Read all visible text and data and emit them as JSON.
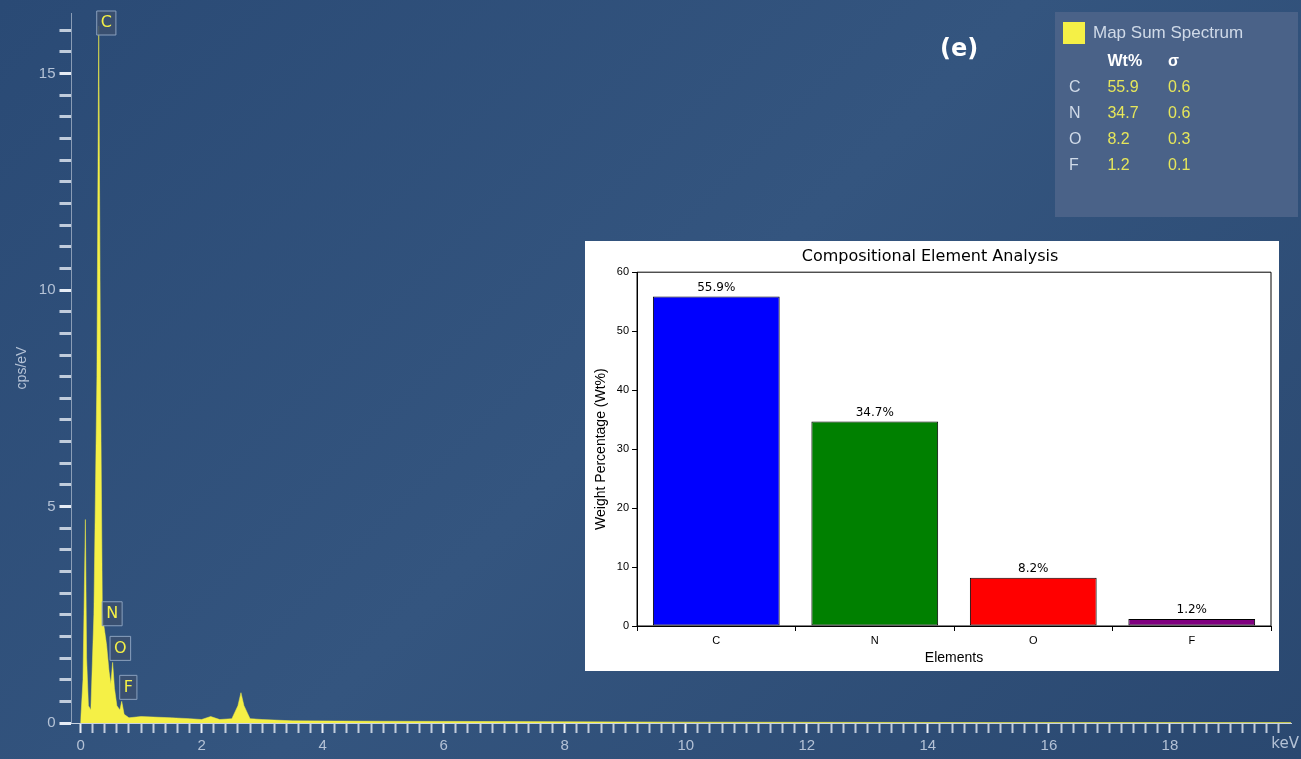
{
  "chart_data": [
    {
      "type": "area",
      "xlabel": "keV",
      "ylabel": "cps/eV",
      "legend": "top right",
      "grid": false,
      "series": [
        {
          "name": "Map Sum Spectrum",
          "color": "#f5f046",
          "x": [
            0.0,
            0.04,
            0.08,
            0.1,
            0.13,
            0.17,
            0.22,
            0.27,
            0.3,
            0.33,
            0.36,
            0.39,
            0.43,
            0.47,
            0.5,
            0.53,
            0.56,
            0.6,
            0.65,
            0.68,
            0.72,
            0.8,
            1.0,
            1.5,
            1.8,
            2.0,
            2.15,
            2.3,
            2.5,
            2.6,
            2.65,
            2.7,
            2.8,
            3.0,
            3.5,
            5,
            8,
            10,
            15,
            20
          ],
          "values": [
            0,
            1.0,
            4.7,
            1.5,
            0.4,
            0.3,
            2.5,
            8,
            16.1,
            8,
            2.6,
            2.2,
            1.8,
            1.2,
            0.9,
            1.4,
            0.8,
            0.4,
            0.3,
            0.5,
            0.2,
            0.12,
            0.15,
            0.12,
            0.1,
            0.08,
            0.15,
            0.08,
            0.1,
            0.4,
            0.7,
            0.4,
            0.1,
            0.08,
            0.05,
            0.04,
            0.03,
            0.02,
            0.01,
            0.01
          ]
        }
      ],
      "xlim": [
        -0.15,
        20
      ],
      "ylim": [
        0,
        16.4
      ],
      "xticks": [
        0,
        {
          "value": 0.2,
          "label": null
        },
        {
          "value": 0.4,
          "label": null
        },
        {
          "value": 0.6,
          "label": null
        },
        {
          "value": 0.8,
          "label": null
        },
        {
          "value": 1,
          "label": null
        },
        {
          "value": 1.2,
          "label": null
        },
        {
          "value": 1.4,
          "label": null
        },
        {
          "value": 1.6,
          "label": null
        },
        {
          "value": 1.8,
          "label": null
        },
        2,
        {
          "value": 2.2,
          "label": null
        },
        {
          "value": 2.4,
          "label": null
        },
        {
          "value": 2.6,
          "label": null
        },
        {
          "value": 2.8,
          "label": null
        },
        {
          "value": 3,
          "label": null
        },
        {
          "value": 3.2,
          "label": null
        },
        {
          "value": 3.4,
          "label": null
        },
        {
          "value": 3.6,
          "label": null
        },
        {
          "value": 3.8,
          "label": null
        },
        4,
        {
          "value": 4.2,
          "label": null
        },
        {
          "value": 4.4,
          "label": null
        },
        {
          "value": 4.6,
          "label": null
        },
        {
          "value": 4.8,
          "label": null
        },
        {
          "value": 5,
          "label": null
        },
        {
          "value": 5.2,
          "label": null
        },
        {
          "value": 5.4,
          "label": null
        },
        {
          "value": 5.6,
          "label": null
        },
        {
          "value": 5.8,
          "label": null
        },
        6,
        {
          "value": 6.2,
          "label": null
        },
        {
          "value": 6.4,
          "label": null
        },
        {
          "value": 6.6,
          "label": null
        },
        {
          "value": 6.8,
          "label": null
        },
        {
          "value": 7,
          "label": null
        },
        {
          "value": 7.2,
          "label": null
        },
        {
          "value": 7.4,
          "label": null
        },
        {
          "value": 7.6,
          "label": null
        },
        {
          "value": 7.8,
          "label": null
        },
        8,
        {
          "value": 8.2,
          "label": null
        },
        {
          "value": 8.4,
          "label": null
        },
        {
          "value": 8.6,
          "label": null
        },
        {
          "value": 8.8,
          "label": null
        },
        {
          "value": 9,
          "label": null
        },
        {
          "value": 9.2,
          "label": null
        },
        {
          "value": 9.4,
          "label": null
        },
        {
          "value": 9.6,
          "label": null
        },
        {
          "value": 9.8,
          "label": null
        },
        10,
        {
          "value": 10.2,
          "label": null
        },
        {
          "value": 10.4,
          "label": null
        },
        {
          "value": 10.6,
          "label": null
        },
        {
          "value": 10.8,
          "label": null
        },
        {
          "value": 11,
          "label": null
        },
        {
          "value": 11.2,
          "label": null
        },
        {
          "value": 11.4,
          "label": null
        },
        {
          "value": 11.6,
          "label": null
        },
        {
          "value": 11.8,
          "label": null
        },
        12,
        {
          "value": 12.2,
          "label": null
        },
        {
          "value": 12.4,
          "label": null
        },
        {
          "value": 12.6,
          "label": null
        },
        {
          "value": 12.8,
          "label": null
        },
        {
          "value": 13,
          "label": null
        },
        {
          "value": 13.2,
          "label": null
        },
        {
          "value": 13.4,
          "label": null
        },
        {
          "value": 13.6,
          "label": null
        },
        {
          "value": 13.8,
          "label": null
        },
        14,
        {
          "value": 14.2,
          "label": null
        },
        {
          "value": 14.4,
          "label": null
        },
        {
          "value": 14.6,
          "label": null
        },
        {
          "value": 14.8,
          "label": null
        },
        {
          "value": 15,
          "label": null
        },
        {
          "value": 15.2,
          "label": null
        },
        {
          "value": 15.4,
          "label": null
        },
        {
          "value": 15.6,
          "label": null
        },
        {
          "value": 15.8,
          "label": null
        },
        16,
        {
          "value": 16.2,
          "label": null
        },
        {
          "value": 16.4,
          "label": null
        },
        {
          "value": 16.6,
          "label": null
        },
        {
          "value": 16.8,
          "label": null
        },
        {
          "value": 17,
          "label": null
        },
        {
          "value": 17.2,
          "label": null
        },
        {
          "value": 17.4,
          "label": null
        },
        {
          "value": 17.6,
          "label": null
        },
        {
          "value": 17.8,
          "label": null
        },
        18,
        {
          "value": 18.2,
          "label": null
        },
        {
          "value": 18.4,
          "label": null
        },
        {
          "value": 18.6,
          "label": null
        },
        {
          "value": 18.8,
          "label": null
        },
        {
          "value": 19,
          "label": null
        },
        {
          "value": 19.2,
          "label": null
        },
        {
          "value": 19.4,
          "label": null
        },
        {
          "value": 19.6,
          "label": null
        },
        {
          "value": 19.8,
          "label": null
        }
      ],
      "yticks": [
        0,
        {
          "value": 0.5,
          "label": null
        },
        {
          "value": 1,
          "label": null
        },
        {
          "value": 1.5,
          "label": null
        },
        {
          "value": 2,
          "label": null
        },
        {
          "value": 2.5,
          "label": null
        },
        {
          "value": 3,
          "label": null
        },
        {
          "value": 3.5,
          "label": null
        },
        {
          "value": 4,
          "label": null
        },
        {
          "value": 4.5,
          "label": null
        },
        5,
        {
          "value": 5.5,
          "label": null
        },
        {
          "value": 6,
          "label": null
        },
        {
          "value": 6.5,
          "label": null
        },
        {
          "value": 7,
          "label": null
        },
        {
          "value": 7.5,
          "label": null
        },
        {
          "value": 8,
          "label": null
        },
        {
          "value": 8.5,
          "label": null
        },
        {
          "value": 9,
          "label": null
        },
        {
          "value": 9.5,
          "label": null
        },
        10,
        {
          "value": 10.5,
          "label": null
        },
        {
          "value": 11,
          "label": null
        },
        {
          "value": 11.5,
          "label": null
        },
        {
          "value": 12,
          "label": null
        },
        {
          "value": 12.5,
          "label": null
        },
        {
          "value": 13,
          "label": null
        },
        {
          "value": 13.5,
          "label": null
        },
        {
          "value": 14,
          "label": null
        },
        {
          "value": 14.5,
          "label": null
        },
        15,
        {
          "value": 15.5,
          "label": null
        },
        {
          "value": 16,
          "label": null
        }
      ],
      "annotations": [
        "(e)",
        {
          "text": "C",
          "x": 0.3,
          "y": 16.1
        },
        {
          "text": "N",
          "x": 0.39,
          "y": 2.2
        },
        {
          "text": "O",
          "x": 0.52,
          "y": 1.4
        },
        {
          "text": "F",
          "x": 0.68,
          "y": 0.5
        }
      ]
    },
    {
      "type": "bar",
      "title": "Compositional Element Analysis",
      "xlabel": "Elements",
      "ylabel": "Weight Percentage (Wt%)",
      "categories": [
        "C",
        "N",
        "O",
        "F"
      ],
      "values": [
        55.9,
        34.7,
        8.2,
        1.2
      ],
      "colors": [
        "#0000ff",
        "#008000",
        "#ff0000",
        "#800080"
      ],
      "value_labels": [
        "55.9%",
        "34.7%",
        "8.2%",
        "1.2%"
      ],
      "ylim": [
        0,
        60
      ],
      "yticks": [
        0,
        10,
        20,
        30,
        40,
        50,
        60
      ],
      "grid": false,
      "legend": false
    },
    {
      "type": "other",
      "categories": [
        "C",
        "N",
        "O",
        "F"
      ],
      "series": [
        {
          "name": "Wt%",
          "values": [
            55.9,
            34.7,
            8.2,
            1.2
          ]
        },
        {
          "name": "σ",
          "values": [
            0.6,
            0.6,
            0.3,
            0.1
          ]
        }
      ],
      "data_labels": true
    }
  ]
}
